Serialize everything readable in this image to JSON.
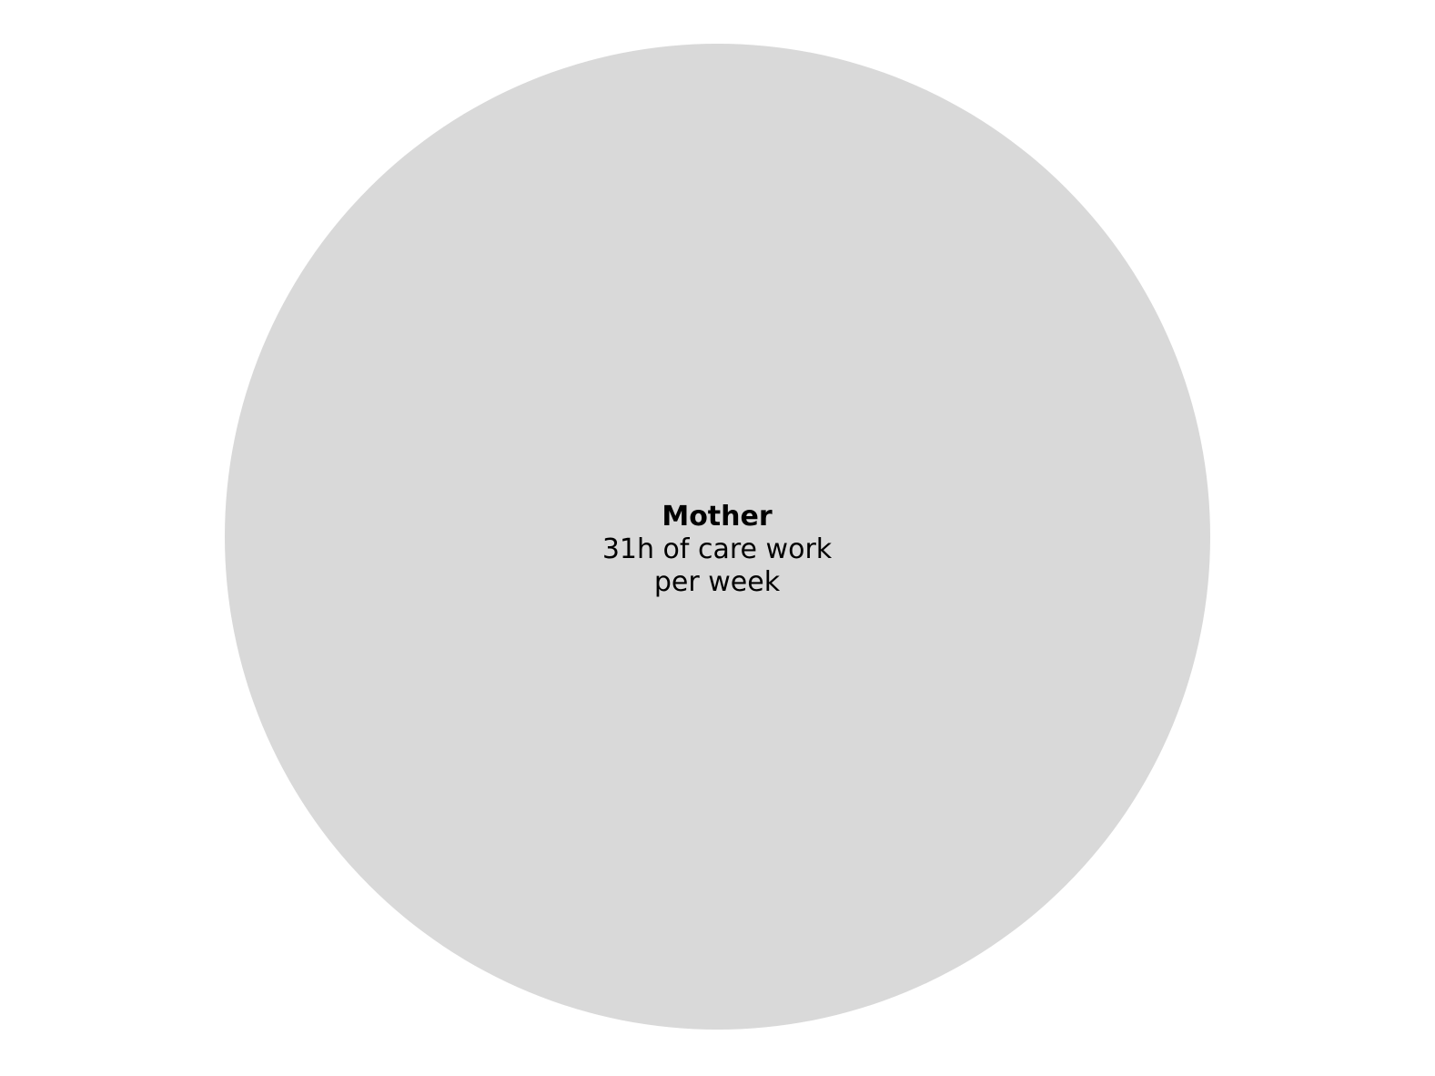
{
  "bubble": {
    "name": "Mother",
    "value_text": "31h of care work per week",
    "color": "#d9d9d9"
  }
}
